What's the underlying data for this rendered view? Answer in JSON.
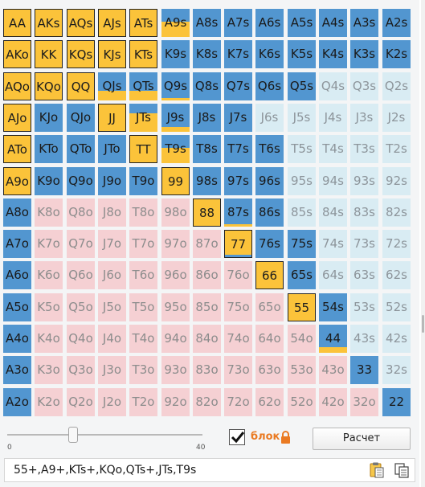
{
  "colors": {
    "raise_yellow": "#fbc33a",
    "call_blue": "#5296d0",
    "fold_light_blue": "#d9ecf3",
    "fold_pink": "#f5d0d3",
    "accent_orange": "#ea7a22"
  },
  "grid": {
    "rows": [
      [
        {
          "h": "AA",
          "t": "raise"
        },
        {
          "h": "AKs",
          "t": "raise"
        },
        {
          "h": "AQs",
          "t": "raise"
        },
        {
          "h": "AJs",
          "t": "raise"
        },
        {
          "h": "ATs",
          "t": "raise"
        },
        {
          "h": "A9s",
          "t": "call",
          "fill": "y",
          "f": 0.55
        },
        {
          "h": "A8s",
          "t": "call"
        },
        {
          "h": "A7s",
          "t": "call"
        },
        {
          "h": "A6s",
          "t": "call"
        },
        {
          "h": "A5s",
          "t": "call"
        },
        {
          "h": "A4s",
          "t": "call"
        },
        {
          "h": "A3s",
          "t": "call"
        },
        {
          "h": "A2s",
          "t": "call"
        }
      ],
      [
        {
          "h": "AKo",
          "t": "raise"
        },
        {
          "h": "KK",
          "t": "raise"
        },
        {
          "h": "KQs",
          "t": "raise"
        },
        {
          "h": "KJs",
          "t": "raise"
        },
        {
          "h": "KTs",
          "t": "raise"
        },
        {
          "h": "K9s",
          "t": "call"
        },
        {
          "h": "K8s",
          "t": "call"
        },
        {
          "h": "K7s",
          "t": "call"
        },
        {
          "h": "K6s",
          "t": "call"
        },
        {
          "h": "K5s",
          "t": "call"
        },
        {
          "h": "K4s",
          "t": "call"
        },
        {
          "h": "K3s",
          "t": "call"
        },
        {
          "h": "K2s",
          "t": "call"
        }
      ],
      [
        {
          "h": "AQo",
          "t": "raise"
        },
        {
          "h": "KQo",
          "t": "raise"
        },
        {
          "h": "QQ",
          "t": "raise"
        },
        {
          "h": "QJs",
          "t": "call",
          "fill": "y",
          "f": 0.35
        },
        {
          "h": "QTs",
          "t": "call",
          "fill": "y",
          "f": 0.35
        },
        {
          "h": "Q9s",
          "t": "call",
          "fill": "y",
          "f": 0.1
        },
        {
          "h": "Q8s",
          "t": "call"
        },
        {
          "h": "Q7s",
          "t": "call"
        },
        {
          "h": "Q6s",
          "t": "call"
        },
        {
          "h": "Q5s",
          "t": "call"
        },
        {
          "h": "Q4s",
          "t": "lb"
        },
        {
          "h": "Q3s",
          "t": "lb"
        },
        {
          "h": "Q2s",
          "t": "lb"
        }
      ],
      [
        {
          "h": "AJo",
          "t": "raise"
        },
        {
          "h": "KJo",
          "t": "call"
        },
        {
          "h": "QJo",
          "t": "call"
        },
        {
          "h": "JJ",
          "t": "raise"
        },
        {
          "h": "JTs",
          "t": "call",
          "fill": "y",
          "f": 0.65
        },
        {
          "h": "J9s",
          "t": "call",
          "fill": "y",
          "f": 0.18
        },
        {
          "h": "J8s",
          "t": "call"
        },
        {
          "h": "J7s",
          "t": "call"
        },
        {
          "h": "J6s",
          "t": "lb"
        },
        {
          "h": "J5s",
          "t": "lb"
        },
        {
          "h": "J4s",
          "t": "lb"
        },
        {
          "h": "J3s",
          "t": "lb"
        },
        {
          "h": "J2s",
          "t": "lb"
        }
      ],
      [
        {
          "h": "ATo",
          "t": "raise"
        },
        {
          "h": "KTo",
          "t": "call"
        },
        {
          "h": "QTo",
          "t": "call"
        },
        {
          "h": "JTo",
          "t": "call"
        },
        {
          "h": "TT",
          "t": "raise"
        },
        {
          "h": "T9s",
          "t": "call",
          "fill": "y",
          "f": 0.55
        },
        {
          "h": "T8s",
          "t": "call"
        },
        {
          "h": "T7s",
          "t": "call"
        },
        {
          "h": "T6s",
          "t": "call"
        },
        {
          "h": "T5s",
          "t": "lb"
        },
        {
          "h": "T4s",
          "t": "lb"
        },
        {
          "h": "T3s",
          "t": "lb"
        },
        {
          "h": "T2s",
          "t": "lb"
        }
      ],
      [
        {
          "h": "A9o",
          "t": "raise"
        },
        {
          "h": "K9o",
          "t": "call"
        },
        {
          "h": "Q9o",
          "t": "call"
        },
        {
          "h": "J9o",
          "t": "call"
        },
        {
          "h": "T9o",
          "t": "call"
        },
        {
          "h": "99",
          "t": "raise"
        },
        {
          "h": "98s",
          "t": "call"
        },
        {
          "h": "97s",
          "t": "call"
        },
        {
          "h": "96s",
          "t": "call"
        },
        {
          "h": "95s",
          "t": "lb"
        },
        {
          "h": "94s",
          "t": "lb"
        },
        {
          "h": "93s",
          "t": "lb"
        },
        {
          "h": "92s",
          "t": "lb"
        }
      ],
      [
        {
          "h": "A8o",
          "t": "ablue"
        },
        {
          "h": "K8o",
          "t": "pink"
        },
        {
          "h": "Q8o",
          "t": "pink"
        },
        {
          "h": "J8o",
          "t": "pink"
        },
        {
          "h": "T8o",
          "t": "pink"
        },
        {
          "h": "98o",
          "t": "pink"
        },
        {
          "h": "88",
          "t": "raise"
        },
        {
          "h": "87s",
          "t": "call",
          "fill": "y",
          "f": 0.1
        },
        {
          "h": "86s",
          "t": "call"
        },
        {
          "h": "85s",
          "t": "lb"
        },
        {
          "h": "84s",
          "t": "lb"
        },
        {
          "h": "83s",
          "t": "lb"
        },
        {
          "h": "82s",
          "t": "lb"
        }
      ],
      [
        {
          "h": "A7o",
          "t": "ablue"
        },
        {
          "h": "K7o",
          "t": "pink"
        },
        {
          "h": "Q7o",
          "t": "pink"
        },
        {
          "h": "J7o",
          "t": "pink"
        },
        {
          "h": "T7o",
          "t": "pink"
        },
        {
          "h": "97o",
          "t": "pink"
        },
        {
          "h": "87o",
          "t": "pink"
        },
        {
          "h": "77",
          "t": "raise",
          "fill": "b",
          "f": 0.1
        },
        {
          "h": "76s",
          "t": "call"
        },
        {
          "h": "75s",
          "t": "call"
        },
        {
          "h": "74s",
          "t": "lb"
        },
        {
          "h": "73s",
          "t": "lb"
        },
        {
          "h": "72s",
          "t": "lb"
        }
      ],
      [
        {
          "h": "A6o",
          "t": "ablue"
        },
        {
          "h": "K6o",
          "t": "pink"
        },
        {
          "h": "Q6o",
          "t": "pink"
        },
        {
          "h": "J6o",
          "t": "pink"
        },
        {
          "h": "T6o",
          "t": "pink"
        },
        {
          "h": "96o",
          "t": "pink"
        },
        {
          "h": "86o",
          "t": "pink"
        },
        {
          "h": "76o",
          "t": "pink"
        },
        {
          "h": "66",
          "t": "raise"
        },
        {
          "h": "65s",
          "t": "call"
        },
        {
          "h": "64s",
          "t": "lb"
        },
        {
          "h": "63s",
          "t": "lb"
        },
        {
          "h": "62s",
          "t": "lb"
        }
      ],
      [
        {
          "h": "A5o",
          "t": "ablue"
        },
        {
          "h": "K5o",
          "t": "pink"
        },
        {
          "h": "Q5o",
          "t": "pink"
        },
        {
          "h": "J5o",
          "t": "pink"
        },
        {
          "h": "T5o",
          "t": "pink"
        },
        {
          "h": "95o",
          "t": "pink"
        },
        {
          "h": "85o",
          "t": "pink"
        },
        {
          "h": "75o",
          "t": "pink"
        },
        {
          "h": "65o",
          "t": "pink"
        },
        {
          "h": "55",
          "t": "raise"
        },
        {
          "h": "54s",
          "t": "call"
        },
        {
          "h": "53s",
          "t": "lb"
        },
        {
          "h": "52s",
          "t": "lb"
        }
      ],
      [
        {
          "h": "A4o",
          "t": "ablue"
        },
        {
          "h": "K4o",
          "t": "pink"
        },
        {
          "h": "Q4o",
          "t": "pink"
        },
        {
          "h": "J4o",
          "t": "pink"
        },
        {
          "h": "T4o",
          "t": "pink"
        },
        {
          "h": "94o",
          "t": "pink"
        },
        {
          "h": "84o",
          "t": "pink"
        },
        {
          "h": "74o",
          "t": "pink"
        },
        {
          "h": "64o",
          "t": "pink"
        },
        {
          "h": "54o",
          "t": "pink"
        },
        {
          "h": "44",
          "t": "call",
          "fill": "y",
          "f": 0.2
        },
        {
          "h": "43s",
          "t": "lb"
        },
        {
          "h": "42s",
          "t": "lb"
        }
      ],
      [
        {
          "h": "A3o",
          "t": "ablue"
        },
        {
          "h": "K3o",
          "t": "pink"
        },
        {
          "h": "Q3o",
          "t": "pink"
        },
        {
          "h": "J3o",
          "t": "pink"
        },
        {
          "h": "T3o",
          "t": "pink"
        },
        {
          "h": "93o",
          "t": "pink"
        },
        {
          "h": "83o",
          "t": "pink"
        },
        {
          "h": "73o",
          "t": "pink"
        },
        {
          "h": "63o",
          "t": "pink"
        },
        {
          "h": "53o",
          "t": "pink"
        },
        {
          "h": "43o",
          "t": "pink"
        },
        {
          "h": "33",
          "t": "bpair"
        },
        {
          "h": "32s",
          "t": "lb"
        }
      ],
      [
        {
          "h": "A2o",
          "t": "ablue"
        },
        {
          "h": "K2o",
          "t": "pink"
        },
        {
          "h": "Q2o",
          "t": "pink"
        },
        {
          "h": "J2o",
          "t": "pink"
        },
        {
          "h": "T2o",
          "t": "pink"
        },
        {
          "h": "92o",
          "t": "pink"
        },
        {
          "h": "82o",
          "t": "pink"
        },
        {
          "h": "72o",
          "t": "pink"
        },
        {
          "h": "62o",
          "t": "pink"
        },
        {
          "h": "52o",
          "t": "pink"
        },
        {
          "h": "42o",
          "t": "pink"
        },
        {
          "h": "32o",
          "t": "pink"
        },
        {
          "h": "22",
          "t": "bpair"
        }
      ]
    ]
  },
  "slider": {
    "min_label": "0",
    "max_label": "40",
    "value_fraction": 0.33
  },
  "lock": {
    "checked": true,
    "label": "блок",
    "icon": "lock-icon"
  },
  "calc_button": {
    "label": "Расчет"
  },
  "range_field": {
    "value": "55+,A9+,KTs+,KQo,QTs+,JTs,T9s"
  },
  "icons": {
    "paste": "paste-icon",
    "copy": "copy-icon",
    "check": "checkmark-icon"
  }
}
